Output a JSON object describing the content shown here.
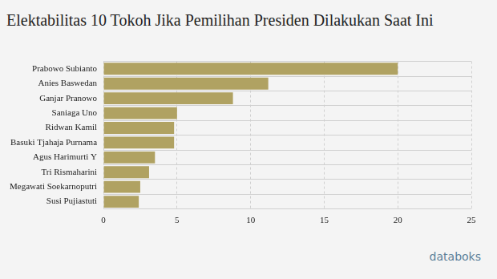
{
  "chart_data": {
    "type": "bar",
    "orientation": "horizontal",
    "title": "Elektabilitas 10 Tokoh Jika Pemilihan Presiden Dilakukan Saat Ini",
    "categories": [
      "Prabowo Subianto",
      "Anies Baswedan",
      "Ganjar Pranowo",
      "Saniaga Uno",
      "Ridwan Kamil",
      "Basuki Tjahaja Purnama",
      "Agus Harimurti Y",
      "Tri Rismaharini",
      "Megawati Soekarnoputri",
      "Susi Pujiastuti"
    ],
    "values": [
      20,
      11.2,
      8.8,
      5.0,
      4.8,
      4.8,
      3.5,
      3.1,
      2.5,
      2.4
    ],
    "color": "#b0a262",
    "xlim": [
      0,
      25
    ],
    "xticks": [
      0,
      5,
      10,
      15,
      20,
      25
    ],
    "grid": true,
    "source": "databoks"
  }
}
